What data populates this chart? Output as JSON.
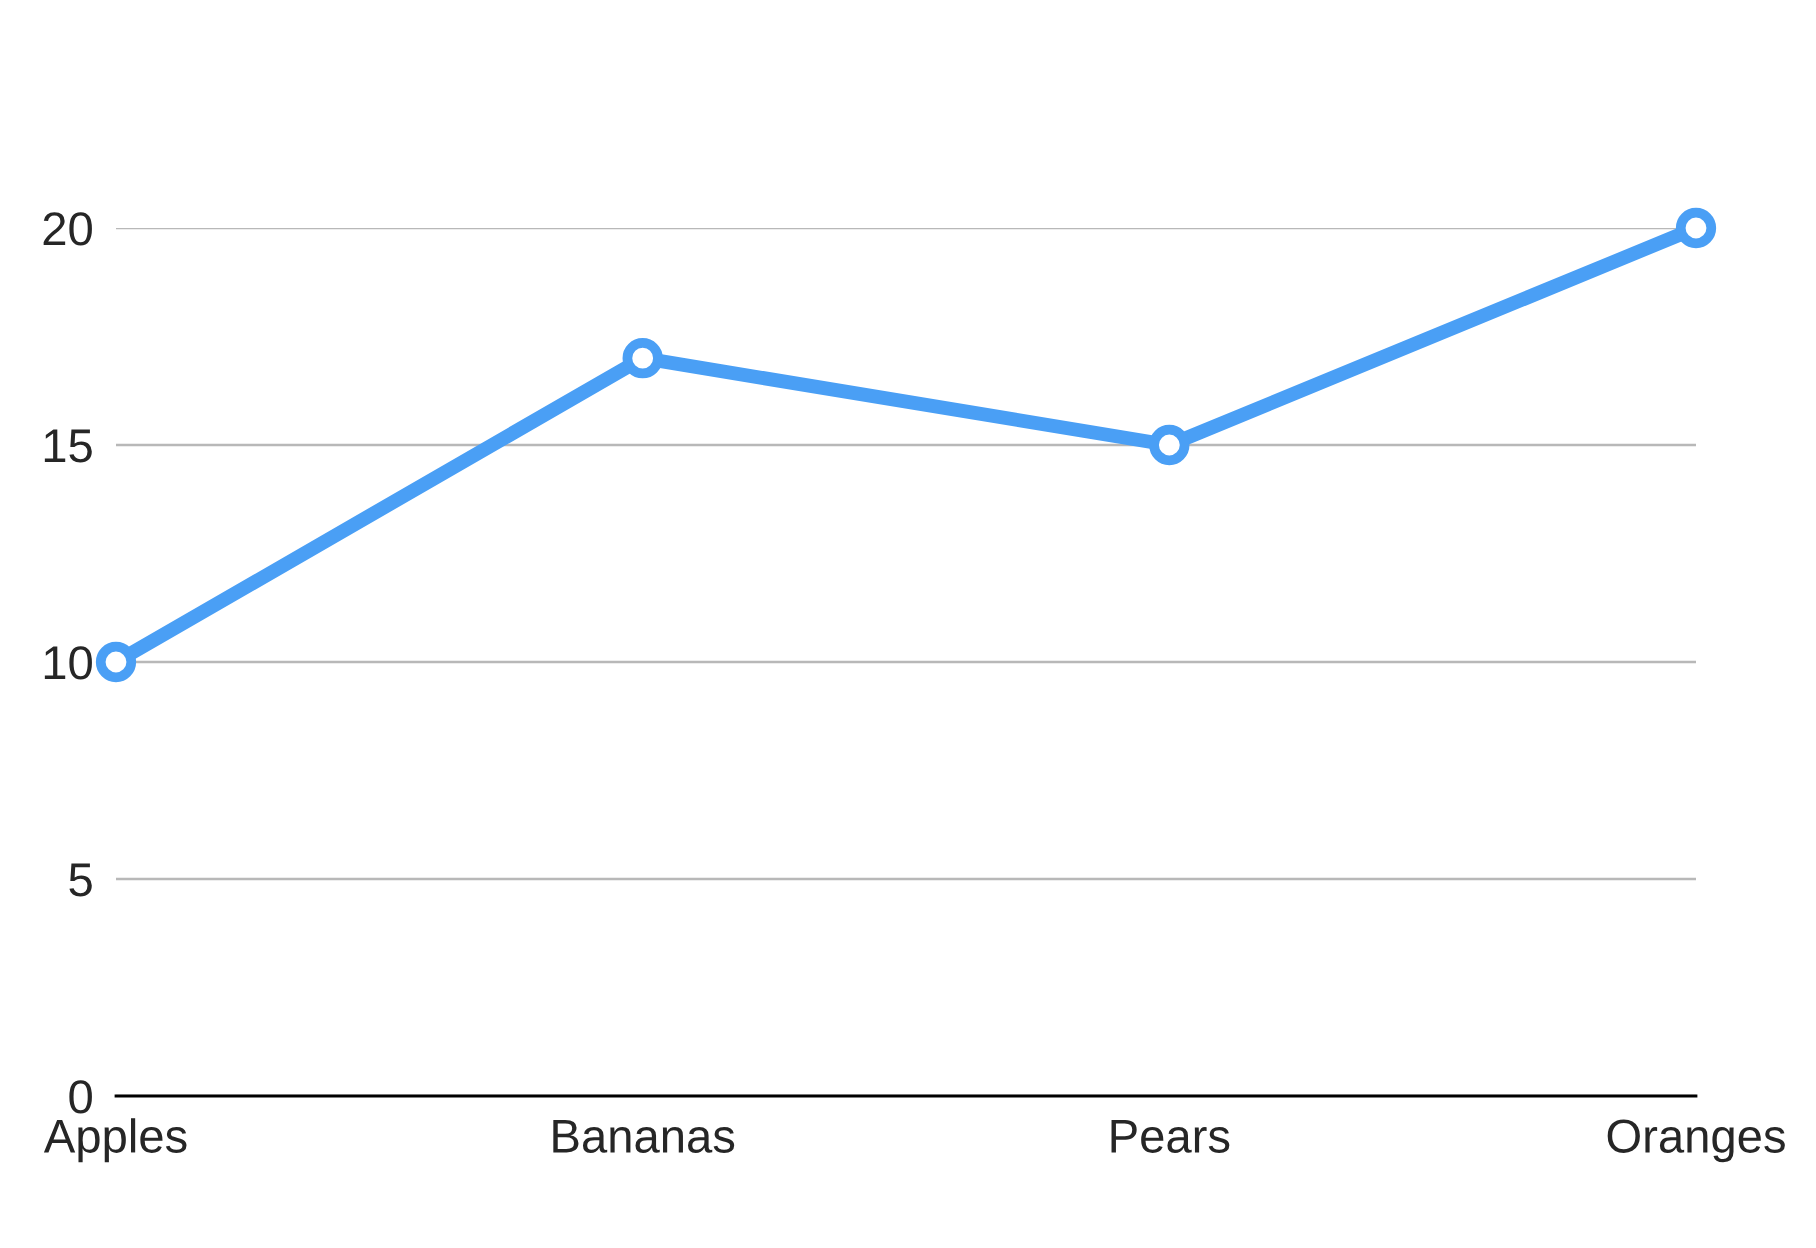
{
  "chart_data": {
    "type": "line",
    "categories": [
      "Apples",
      "Bananas",
      "Pears",
      "Oranges"
    ],
    "series": [
      {
        "color": "#4a9ff5",
        "values": [
          10,
          17,
          15,
          20
        ]
      }
    ],
    "ylim": [
      0,
      20
    ],
    "yticks": [
      0,
      5,
      10,
      15,
      20
    ],
    "grid": "y",
    "marker": "circle",
    "line_style": "solid"
  }
}
